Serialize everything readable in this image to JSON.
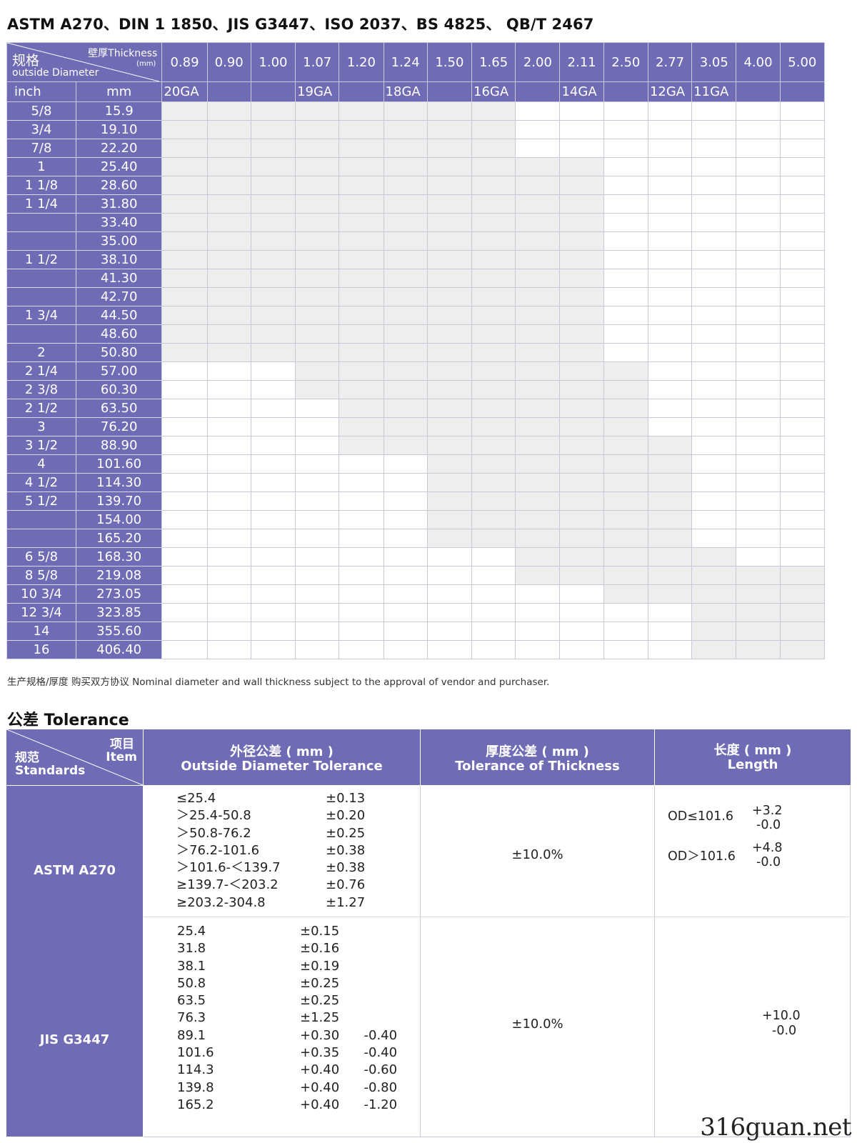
{
  "title": "ASTM A270、DIN 1 1850、JIS G3447、ISO 2037、BS 4825、 QB/T 2467",
  "spec_table": {
    "corner": {
      "wall_cn": "壁厚Thickness",
      "unit": "(mm)",
      "od_cn": "规格",
      "od_en": "outside Diameter"
    },
    "thicknesses": [
      "0.89",
      "0.90",
      "1.00",
      "1.07",
      "1.20",
      "1.24",
      "1.50",
      "1.65",
      "2.00",
      "2.11",
      "2.50",
      "2.77",
      "3.05",
      "4.00",
      "5.00"
    ],
    "unit_row": {
      "inch": "inch",
      "mm": "mm"
    },
    "gauges": [
      "20GA",
      "",
      "",
      "19GA",
      "",
      "18GA",
      "",
      "16GA",
      "",
      "14GA",
      "",
      "12GA",
      "11GA",
      "",
      ""
    ],
    "rows": [
      {
        "inch": "5/8",
        "mm": "15.9"
      },
      {
        "inch": "3/4",
        "mm": "19.10"
      },
      {
        "inch": "7/8",
        "mm": "22.20"
      },
      {
        "inch": "1",
        "mm": "25.40"
      },
      {
        "inch": "1 1/8",
        "mm": "28.60"
      },
      {
        "inch": "1 1/4",
        "mm": "31.80"
      },
      {
        "inch": "",
        "mm": "33.40"
      },
      {
        "inch": "",
        "mm": "35.00"
      },
      {
        "inch": "1 1/2",
        "mm": "38.10"
      },
      {
        "inch": "",
        "mm": "41.30"
      },
      {
        "inch": "",
        "mm": "42.70"
      },
      {
        "inch": "1 3/4",
        "mm": "44.50"
      },
      {
        "inch": "",
        "mm": "48.60"
      },
      {
        "inch": "2",
        "mm": "50.80"
      },
      {
        "inch": "2 1/4",
        "mm": "57.00"
      },
      {
        "inch": "2 3/8",
        "mm": "60.30"
      },
      {
        "inch": "2 1/2",
        "mm": "63.50"
      },
      {
        "inch": "3",
        "mm": "76.20"
      },
      {
        "inch": "3 1/2",
        "mm": "88.90"
      },
      {
        "inch": "4",
        "mm": "101.60"
      },
      {
        "inch": "4 1/2",
        "mm": "114.30"
      },
      {
        "inch": "5 1/2",
        "mm": "139.70"
      },
      {
        "inch": "",
        "mm": "154.00"
      },
      {
        "inch": "",
        "mm": "165.20"
      },
      {
        "inch": "6 5/8",
        "mm": "168.30"
      },
      {
        "inch": "8 5/8",
        "mm": "219.08"
      },
      {
        "inch": "10 3/4",
        "mm": "273.05"
      },
      {
        "inch": "12 3/4",
        "mm": "323.85"
      },
      {
        "inch": "14",
        "mm": "355.60"
      },
      {
        "inch": "16",
        "mm": "406.40"
      }
    ],
    "available_ranges": [
      [
        0,
        7
      ],
      [
        0,
        7
      ],
      [
        0,
        7
      ],
      [
        0,
        9
      ],
      [
        0,
        9
      ],
      [
        0,
        9
      ],
      [
        0,
        9
      ],
      [
        0,
        9
      ],
      [
        0,
        9
      ],
      [
        0,
        9
      ],
      [
        0,
        9
      ],
      [
        0,
        9
      ],
      [
        0,
        9
      ],
      [
        0,
        9
      ],
      [
        3,
        10
      ],
      [
        3,
        10
      ],
      [
        4,
        10
      ],
      [
        4,
        10
      ],
      [
        4,
        11
      ],
      [
        6,
        11
      ],
      [
        6,
        11
      ],
      [
        6,
        11
      ],
      [
        6,
        11
      ],
      [
        6,
        11
      ],
      [
        8,
        12
      ],
      [
        8,
        14
      ],
      [
        10,
        14
      ],
      [
        12,
        14
      ],
      [
        12,
        14
      ],
      [
        12,
        14
      ]
    ],
    "shade_color": "#eeeeee",
    "header_color": "#6f6bb5"
  },
  "note": "生产规格/厚度 购买双方协议    Nominal diameter and wall thickness subject  to the approval of vendor and purchaser.",
  "tolerance": {
    "heading": "公差 Tolerance",
    "corner": {
      "item_cn": "项目",
      "item_en": "Item",
      "std_cn": "规范",
      "std_en": "Standards"
    },
    "od_header": {
      "cn": "外径公差 ( mm )",
      "en": "Outside Diameter   Tolerance"
    },
    "thk_header": {
      "cn": "厚度公差 ( mm )",
      "en": "Tolerance of  Thickness"
    },
    "len_header": {
      "cn": "长度 ( mm )",
      "en": "Length"
    },
    "astm": {
      "name": "ASTM  A270",
      "od_ranges": [
        "≤25.4",
        "＞25.4-50.8",
        "＞50.8-76.2",
        "＞76.2-101.6",
        "＞101.6-＜139.7",
        "≥139.7-＜203.2",
        "≥203.2-304.8"
      ],
      "od_tols": [
        "±0.13",
        "±0.20",
        "±0.25",
        "±0.38",
        "±0.38",
        "±0.76",
        "±1.27"
      ],
      "thickness": "±10.0%",
      "length": [
        {
          "cond": "OD≤101.6",
          "plus": "+3.2",
          "minus": "-0.0"
        },
        {
          "cond": "OD＞101.6",
          "plus": "+4.8",
          "minus": "-0.0"
        }
      ]
    },
    "jis": {
      "name": "JIS  G3447",
      "od_sizes": [
        "25.4",
        "31.8",
        "38.1",
        "50.8",
        "63.5",
        "76.3",
        "89.1",
        "101.6",
        "114.3",
        "139.8",
        "165.2"
      ],
      "od_tols": [
        "±0.15",
        "±0.16",
        "±0.19",
        "±0.25",
        "±0.25",
        "±1.25",
        "+0.30      -0.40",
        "+0.35      -0.40",
        "+0.40      -0.60",
        "+0.40      -0.80",
        "+0.40      -1.20"
      ],
      "thickness": "±10.0%",
      "length_plus": "+10.0",
      "length_minus": "-0.0"
    }
  },
  "watermark": "316guan.net"
}
